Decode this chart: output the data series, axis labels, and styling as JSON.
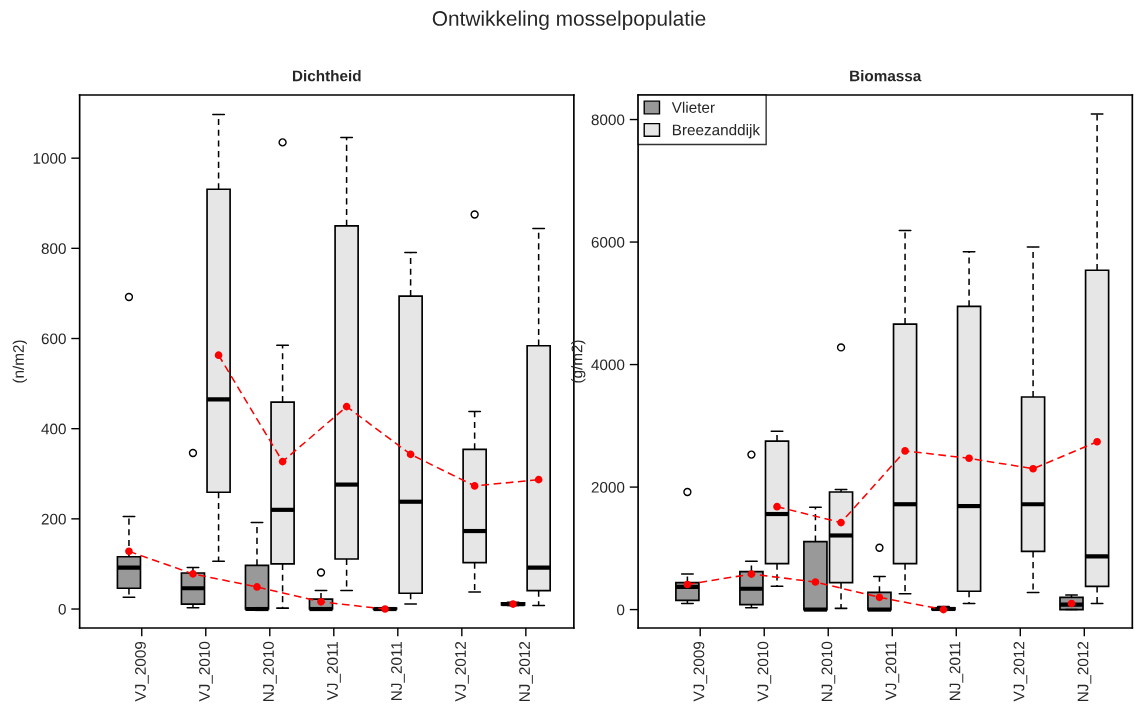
{
  "chart_data": [
    {
      "type": "box",
      "title": "Dichtheid",
      "ylabel": "(n/m2)",
      "annotations": [
        "Ontwikkeling mosselpopulatie"
      ],
      "categories": [
        "VJ_2009",
        "VJ_2010",
        "NJ_2010",
        "VJ_2011",
        "NJ_2011",
        "VJ_2012",
        "NJ_2012"
      ],
      "ylim": [
        -42,
        1140
      ],
      "yticks": [
        0,
        200,
        400,
        600,
        800,
        1000
      ],
      "series": [
        {
          "color": "#999999",
          "boxes": [
            {
              "low": 26,
              "q1": 46,
              "median": 92,
              "q3": 116,
              "high": 205,
              "outliers": [
                692
              ]
            },
            {
              "low": 3,
              "q1": 11,
              "median": 46,
              "q3": 80,
              "high": 92,
              "outliers": [
                346
              ]
            },
            {
              "low": 0,
              "q1": 0,
              "median": 0,
              "q3": 97,
              "high": 192
            },
            {
              "low": 0,
              "q1": 0,
              "median": 0,
              "q3": 22,
              "high": 41,
              "outliers": [
                81
              ]
            },
            {
              "low": 0,
              "q1": 0,
              "median": 0,
              "q3": 2,
              "high": 3
            },
            null,
            {
              "low": 8,
              "q1": 9,
              "median": 11,
              "q3": 14,
              "high": 15
            }
          ]
        },
        {
          "color": "#e6e6e6",
          "boxes": [
            null,
            {
              "low": 106,
              "q1": 259,
              "median": 465,
              "q3": 931,
              "high": 1097
            },
            {
              "low": 2,
              "q1": 100,
              "median": 220,
              "q3": 459,
              "high": 585,
              "outliers": [
                1035
              ]
            },
            {
              "low": 41,
              "q1": 111,
              "median": 276,
              "q3": 850,
              "high": 1046
            },
            {
              "low": 11,
              "q1": 35,
              "median": 238,
              "q3": 694,
              "high": 791
            },
            {
              "low": 38,
              "q1": 103,
              "median": 173,
              "q3": 354,
              "high": 438,
              "outliers": [
                875
              ]
            },
            {
              "low": 8,
              "q1": 41,
              "median": 92,
              "q3": 584,
              "high": 844
            }
          ]
        },
        {
          "type": "line",
          "color": "#ff0000",
          "marker": "circle",
          "line_style": "dashed",
          "values": [
            128,
            78,
            49,
            16,
            0,
            null,
            11
          ]
        },
        {
          "type": "line",
          "color": "#ff0000",
          "marker": "circle",
          "line_style": "dashed",
          "values": [
            null,
            563,
            327,
            449,
            343,
            273,
            287
          ]
        }
      ]
    },
    {
      "type": "box",
      "title": "Biomassa",
      "ylabel": "(g/m2)",
      "legend": "top left",
      "categories": [
        "VJ_2009",
        "VJ_2010",
        "NJ_2010",
        "VJ_2011",
        "NJ_2011",
        "VJ_2012",
        "NJ_2012"
      ],
      "ylim": [
        -300,
        8400
      ],
      "yticks": [
        0,
        2000,
        4000,
        6000,
        8000
      ],
      "series": [
        {
          "name": "Vlieter",
          "color": "#999999",
          "boxes": [
            {
              "low": 100,
              "q1": 150,
              "median": 370,
              "q3": 440,
              "high": 580,
              "outliers": [
                1920
              ]
            },
            {
              "low": 30,
              "q1": 80,
              "median": 340,
              "q3": 620,
              "high": 790,
              "outliers": [
                2530
              ]
            },
            {
              "low": 0,
              "q1": 0,
              "median": 0,
              "q3": 1110,
              "high": 1670
            },
            {
              "low": 0,
              "q1": 0,
              "median": 0,
              "q3": 280,
              "high": 540,
              "outliers": [
                1010
              ]
            },
            {
              "low": 0,
              "q1": 0,
              "median": 10,
              "q3": 30,
              "high": 50
            },
            null,
            {
              "low": 0,
              "q1": 0,
              "median": 80,
              "q3": 200,
              "high": 240
            }
          ]
        },
        {
          "name": "Breezanddijk",
          "color": "#e6e6e6",
          "boxes": [
            null,
            {
              "low": 380,
              "q1": 750,
              "median": 1560,
              "q3": 2750,
              "high": 2910
            },
            {
              "low": 20,
              "q1": 440,
              "median": 1210,
              "q3": 1920,
              "high": 1960,
              "outliers": [
                4280
              ]
            },
            {
              "low": 260,
              "q1": 750,
              "median": 1720,
              "q3": 4660,
              "high": 6190
            },
            {
              "low": 100,
              "q1": 300,
              "median": 1690,
              "q3": 4950,
              "high": 5840
            },
            {
              "low": 280,
              "q1": 950,
              "median": 1720,
              "q3": 3470,
              "high": 5920
            },
            {
              "low": 100,
              "q1": 380,
              "median": 870,
              "q3": 5540,
              "high": 8090
            }
          ]
        },
        {
          "type": "line",
          "color": "#ff0000",
          "marker": "circle",
          "line_style": "dashed",
          "values": [
            410,
            580,
            450,
            200,
            0,
            null,
            100
          ]
        },
        {
          "type": "line",
          "color": "#ff0000",
          "marker": "circle",
          "line_style": "dashed",
          "values": [
            null,
            1680,
            1420,
            2590,
            2470,
            2300,
            2740
          ]
        }
      ]
    }
  ]
}
